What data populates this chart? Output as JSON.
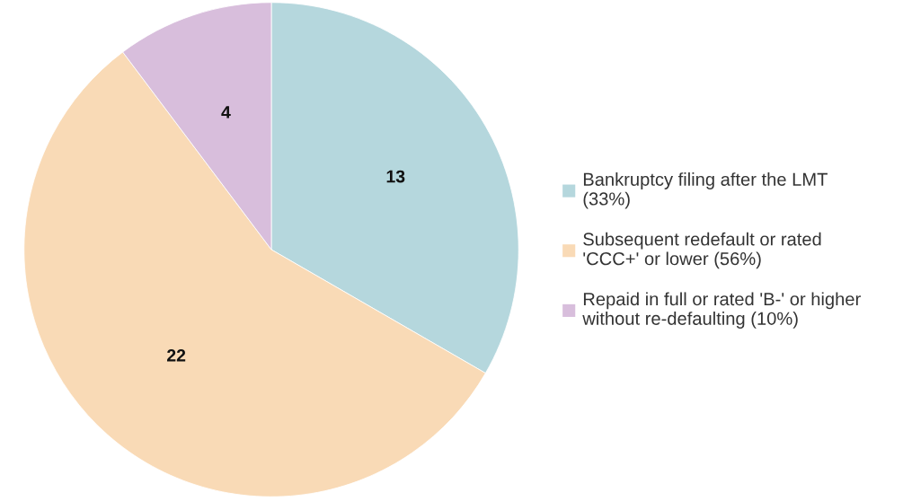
{
  "chart_data": {
    "type": "pie",
    "categories": [
      "Bankruptcy filing after the LMT\n(33%)",
      "Subsequent redefault or rated\n'CCC+' or lower (56%)",
      "Repaid in full or rated 'B-' or higher\nwithout re-defaulting (10%)"
    ],
    "values": [
      13,
      22,
      4
    ],
    "colors": [
      "#b5d7dd",
      "#f9dab6",
      "#d8bedc"
    ],
    "data_labels": true,
    "legend": "right"
  }
}
